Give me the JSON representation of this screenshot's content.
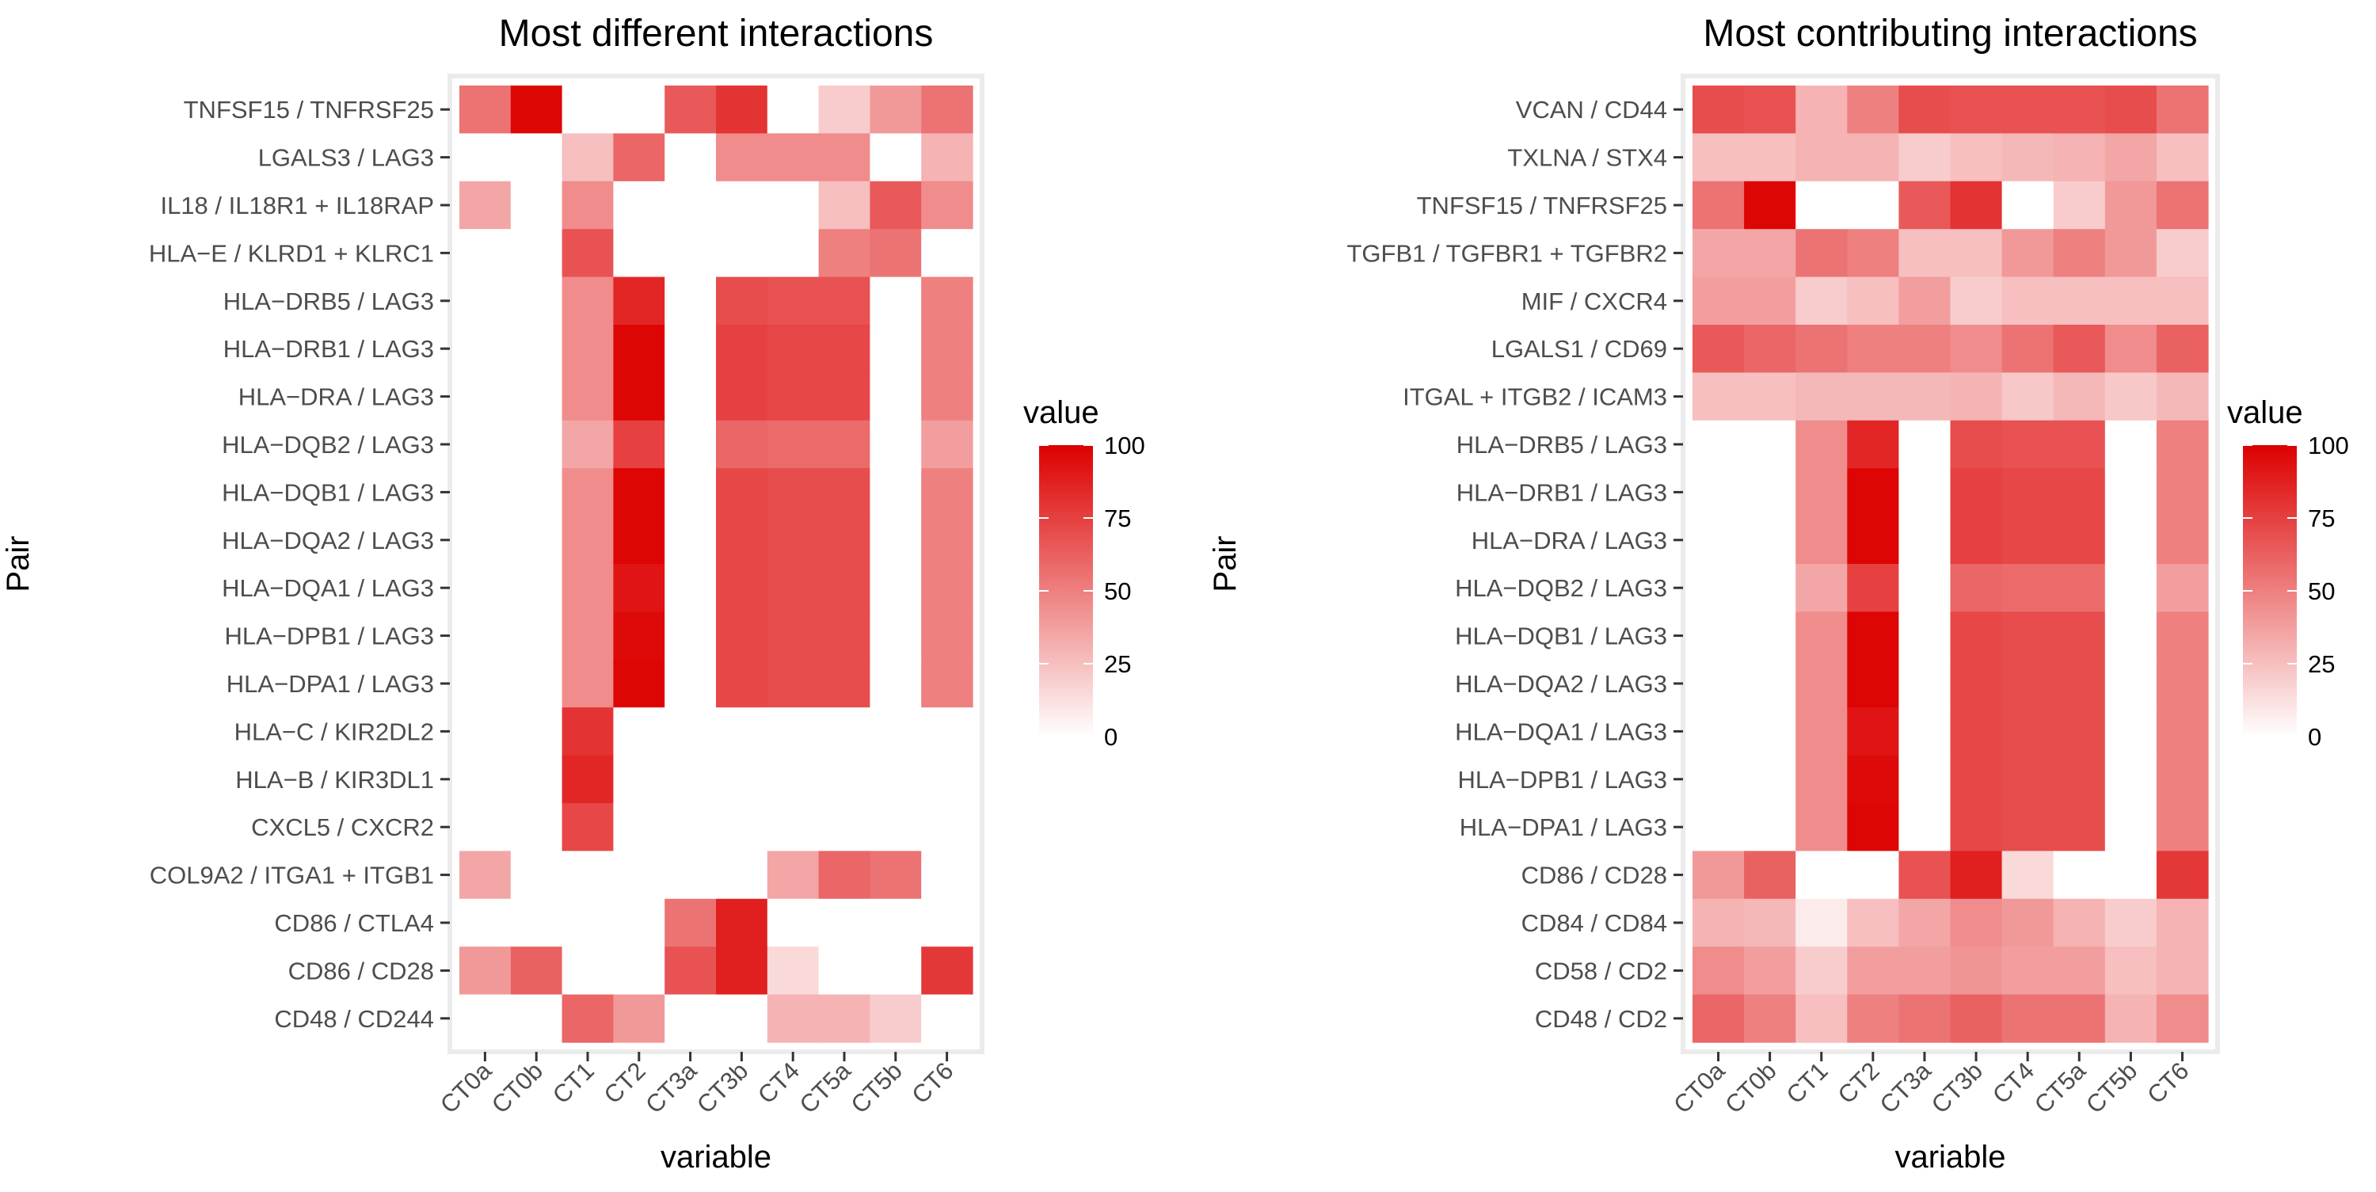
{
  "chart_data": [
    {
      "type": "heatmap",
      "title": "Most different interactions",
      "xlabel": "variable",
      "ylabel": "Pair",
      "legend_title": "value",
      "legend_ticks": [
        "100",
        "75",
        "50",
        "25",
        "0"
      ],
      "value_range": [
        0,
        100
      ],
      "legend_placement": "right",
      "colors": {
        "low": "#ffffff",
        "high": "#dd0000"
      },
      "x": [
        "CT0a",
        "CT0b",
        "CT1",
        "CT2",
        "CT3a",
        "CT3b",
        "CT4",
        "CT5a",
        "CT5b",
        "CT6"
      ],
      "y": [
        "TNFSF15 / TNFRSF25",
        "LGALS3 / LAG3",
        "IL18 / IL18R1 + IL18RAP",
        "HLA−E / KLRD1 + KLRC1",
        "HLA−DRB5 / LAG3",
        "HLA−DRB1 / LAG3",
        "HLA−DRA / LAG3",
        "HLA−DQB2 / LAG3",
        "HLA−DQB1 / LAG3",
        "HLA−DQA2 / LAG3",
        "HLA−DQA1 / LAG3",
        "HLA−DPB1 / LAG3",
        "HLA−DPA1 / LAG3",
        "HLA−C / KIR2DL2",
        "HLA−B / KIR3DL1",
        "CXCL5 / CXCR2",
        "COL9A2 / ITGA1 + ITGB1",
        "CD86 / CTLA4",
        "CD86 / CD28",
        "CD48 / CD244"
      ],
      "values": [
        [
          55,
          98,
          0,
          0,
          65,
          80,
          0,
          20,
          40,
          55
        ],
        [
          0,
          0,
          25,
          60,
          0,
          45,
          45,
          45,
          0,
          30
        ],
        [
          35,
          0,
          45,
          0,
          0,
          0,
          0,
          25,
          65,
          45
        ],
        [
          0,
          0,
          68,
          0,
          0,
          0,
          0,
          50,
          55,
          0
        ],
        [
          0,
          0,
          45,
          85,
          0,
          70,
          68,
          68,
          0,
          50
        ],
        [
          0,
          0,
          45,
          98,
          0,
          75,
          72,
          72,
          0,
          50
        ],
        [
          0,
          0,
          45,
          98,
          0,
          75,
          72,
          72,
          0,
          50
        ],
        [
          0,
          0,
          35,
          75,
          0,
          60,
          58,
          58,
          0,
          38
        ],
        [
          0,
          0,
          45,
          98,
          0,
          72,
          70,
          70,
          0,
          50
        ],
        [
          0,
          0,
          45,
          98,
          0,
          72,
          70,
          70,
          0,
          50
        ],
        [
          0,
          0,
          45,
          92,
          0,
          72,
          70,
          70,
          0,
          50
        ],
        [
          0,
          0,
          45,
          96,
          0,
          72,
          70,
          70,
          0,
          50
        ],
        [
          0,
          0,
          45,
          98,
          0,
          72,
          70,
          70,
          0,
          50
        ],
        [
          0,
          0,
          80,
          0,
          0,
          0,
          0,
          0,
          0,
          0
        ],
        [
          0,
          0,
          85,
          0,
          0,
          0,
          0,
          0,
          0,
          0
        ],
        [
          0,
          0,
          72,
          0,
          0,
          0,
          0,
          0,
          0,
          0
        ],
        [
          35,
          0,
          0,
          0,
          0,
          0,
          35,
          60,
          55,
          0
        ],
        [
          0,
          0,
          0,
          0,
          55,
          88,
          0,
          0,
          0,
          0
        ],
        [
          40,
          62,
          0,
          0,
          68,
          88,
          15,
          0,
          0,
          78
        ],
        [
          0,
          0,
          60,
          40,
          0,
          0,
          30,
          30,
          20,
          0
        ]
      ]
    },
    {
      "type": "heatmap",
      "title": "Most contributing interactions",
      "xlabel": "variable",
      "ylabel": "Pair",
      "legend_title": "value",
      "legend_ticks": [
        "100",
        "75",
        "50",
        "25",
        "0"
      ],
      "value_range": [
        0,
        100
      ],
      "legend_placement": "right",
      "colors": {
        "low": "#ffffff",
        "high": "#dd0000"
      },
      "x": [
        "CT0a",
        "CT0b",
        "CT1",
        "CT2",
        "CT3a",
        "CT3b",
        "CT4",
        "CT5a",
        "CT5b",
        "CT6"
      ],
      "y": [
        "VCAN / CD44",
        "TXLNA / STX4",
        "TNFSF15 / TNFRSF25",
        "TGFB1 / TGFBR1 + TGFBR2",
        "MIF / CXCR4",
        "LGALS1 / CD69",
        "ITGAL + ITGB2 / ICAM3",
        "HLA−DRB5 / LAG3",
        "HLA−DRB1 / LAG3",
        "HLA−DRA / LAG3",
        "HLA−DQB2 / LAG3",
        "HLA−DQB1 / LAG3",
        "HLA−DQA2 / LAG3",
        "HLA−DQA1 / LAG3",
        "HLA−DPB1 / LAG3",
        "HLA−DPA1 / LAG3",
        "CD86 / CD28",
        "CD84 / CD84",
        "CD58 / CD2",
        "CD48 / CD2"
      ],
      "values": [
        [
          70,
          68,
          30,
          50,
          70,
          68,
          68,
          68,
          70,
          55
        ],
        [
          25,
          25,
          30,
          30,
          20,
          25,
          28,
          30,
          35,
          25
        ],
        [
          55,
          98,
          0,
          0,
          65,
          80,
          0,
          20,
          40,
          55
        ],
        [
          35,
          35,
          55,
          50,
          25,
          25,
          40,
          50,
          40,
          20
        ],
        [
          38,
          38,
          20,
          25,
          38,
          20,
          25,
          25,
          25,
          25
        ],
        [
          65,
          60,
          55,
          50,
          50,
          45,
          55,
          65,
          45,
          62
        ],
        [
          25,
          25,
          28,
          28,
          28,
          30,
          22,
          28,
          22,
          28
        ],
        [
          0,
          0,
          45,
          85,
          0,
          70,
          68,
          68,
          0,
          50
        ],
        [
          0,
          0,
          45,
          98,
          0,
          75,
          72,
          72,
          0,
          50
        ],
        [
          0,
          0,
          45,
          98,
          0,
          75,
          72,
          72,
          0,
          50
        ],
        [
          0,
          0,
          35,
          75,
          0,
          60,
          58,
          58,
          0,
          38
        ],
        [
          0,
          0,
          45,
          98,
          0,
          72,
          70,
          70,
          0,
          50
        ],
        [
          0,
          0,
          45,
          98,
          0,
          72,
          70,
          70,
          0,
          50
        ],
        [
          0,
          0,
          45,
          92,
          0,
          72,
          70,
          70,
          0,
          50
        ],
        [
          0,
          0,
          45,
          96,
          0,
          72,
          70,
          70,
          0,
          50
        ],
        [
          0,
          0,
          45,
          98,
          0,
          72,
          70,
          70,
          0,
          50
        ],
        [
          40,
          62,
          0,
          0,
          68,
          88,
          15,
          0,
          0,
          78
        ],
        [
          30,
          28,
          8,
          25,
          35,
          45,
          40,
          30,
          20,
          30
        ],
        [
          45,
          38,
          20,
          38,
          38,
          42,
          38,
          38,
          25,
          30
        ],
        [
          60,
          50,
          25,
          50,
          55,
          62,
          55,
          55,
          30,
          45
        ]
      ]
    }
  ]
}
